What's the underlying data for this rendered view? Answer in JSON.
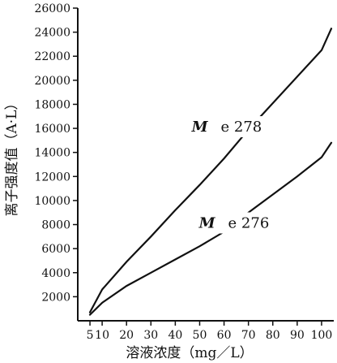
{
  "chart_data": {
    "type": "line",
    "title": "",
    "xlabel": "溶液浓度（mg／L）",
    "ylabel": "离子强度值（A·L）",
    "xlim": [
      0,
      105
    ],
    "ylim": [
      0,
      26000
    ],
    "x_ticks": [
      5,
      10,
      20,
      30,
      40,
      50,
      60,
      70,
      80,
      90,
      100
    ],
    "y_ticks": [
      2000,
      4000,
      6000,
      8000,
      10000,
      12000,
      14000,
      16000,
      18000,
      20000,
      22000,
      24000,
      26000
    ],
    "series": [
      {
        "name": "M/e 278",
        "label_m": "M",
        "label_rest": "e 278",
        "label_at": [
          62,
          15800
        ],
        "x": [
          5,
          10,
          20,
          30,
          40,
          50,
          60,
          70,
          80,
          90,
          100,
          104
        ],
        "y": [
          700,
          2600,
          4900,
          7000,
          9200,
          11300,
          13500,
          15900,
          18100,
          20300,
          22500,
          24300
        ]
      },
      {
        "name": "M/e 276",
        "label_m": "M",
        "label_rest": "e 276",
        "label_at": [
          65,
          7800
        ],
        "x": [
          5,
          10,
          20,
          30,
          40,
          50,
          60,
          70,
          80,
          90,
          100,
          104
        ],
        "y": [
          500,
          1500,
          2900,
          4000,
          5100,
          6200,
          7400,
          9000,
          10500,
          12000,
          13600,
          14800
        ]
      }
    ]
  }
}
